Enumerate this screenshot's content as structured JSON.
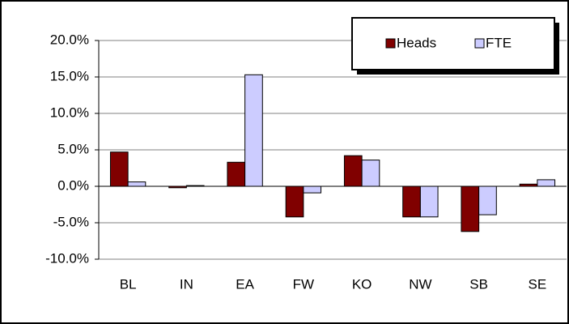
{
  "chart_data": {
    "type": "bar",
    "categories": [
      "BL",
      "IN",
      "EA",
      "FW",
      "KO",
      "NW",
      "SB",
      "SE"
    ],
    "series": [
      {
        "name": "Heads",
        "color": "#800000",
        "values": [
          4.7,
          -0.2,
          3.3,
          -4.2,
          4.2,
          -4.2,
          -6.2,
          0.3
        ]
      },
      {
        "name": "FTE",
        "color": "#ccccff",
        "values": [
          0.6,
          0.1,
          15.3,
          -0.9,
          3.6,
          -4.2,
          -3.9,
          0.9
        ]
      }
    ],
    "ylim": [
      -10,
      20
    ],
    "yticks": [
      {
        "value": -10,
        "label": "-10.0%"
      },
      {
        "value": -5,
        "label": "-5.0%"
      },
      {
        "value": 0,
        "label": "0.0%"
      },
      {
        "value": 5,
        "label": "5.0%"
      },
      {
        "value": 10,
        "label": "10.0%"
      },
      {
        "value": 15,
        "label": "15.0%"
      },
      {
        "value": 20,
        "label": "20.0%"
      }
    ],
    "grid": true,
    "legend": "top-right"
  }
}
